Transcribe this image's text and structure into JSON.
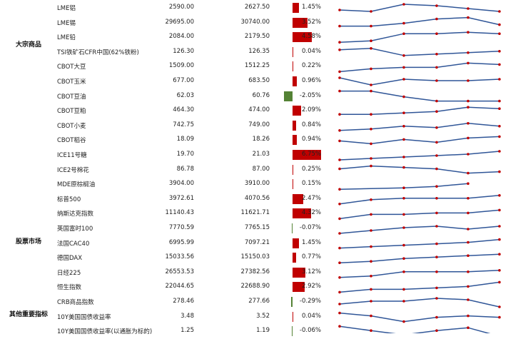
{
  "colors": {
    "up": "#c00000",
    "down": "#548235",
    "line": "#2f5597",
    "dot": "#c00000"
  },
  "categories": [
    {
      "label": "大宗商品"
    },
    {
      "label": "股票市场"
    },
    {
      "label": "其他重要指标"
    }
  ],
  "rows": [
    {
      "name": "LME铝",
      "prev": "2590.00",
      "curr": "2627.50",
      "pct": "1.45%",
      "value": 1.45,
      "spark": [
        3,
        2,
        7,
        6,
        4,
        2
      ]
    },
    {
      "name": "LME锡",
      "prev": "29695.00",
      "curr": "30740.00",
      "pct": "3.52%",
      "value": 3.52,
      "spark": [
        2,
        2,
        4,
        7,
        8,
        3
      ]
    },
    {
      "name": "LME铅",
      "prev": "2084.00",
      "curr": "2179.50",
      "pct": "4.58%",
      "value": 4.58,
      "spark": [
        1,
        2,
        7,
        7,
        8,
        7
      ]
    },
    {
      "name": "TSI铁矿石CFR中国(62%铁粉)",
      "prev": "126.30",
      "curr": "126.35",
      "pct": "0.04%",
      "value": 0.04,
      "spark": [
        6,
        7,
        2,
        3,
        4,
        5
      ]
    },
    {
      "name": "CBOT大豆",
      "prev": "1509.00",
      "curr": "1512.25",
      "pct": "0.22%",
      "value": 0.22,
      "spark": [
        1,
        3,
        4,
        4,
        7,
        6
      ]
    },
    {
      "name": "CBOT玉米",
      "prev": "677.00",
      "curr": "683.50",
      "pct": "0.96%",
      "value": 0.96,
      "spark": [
        7,
        2,
        6,
        5,
        5,
        6
      ]
    },
    {
      "name": "CBOT豆油",
      "prev": "62.03",
      "curr": "60.76",
      "pct": "-2.05%",
      "value": -2.05,
      "spark": [
        8,
        8,
        4,
        1,
        1,
        1
      ]
    },
    {
      "name": "CBOT豆粕",
      "prev": "464.30",
      "curr": "474.00",
      "pct": "2.09%",
      "value": 2.09,
      "spark": [
        2,
        2,
        3,
        4,
        7,
        6
      ]
    },
    {
      "name": "CBOT小麦",
      "prev": "742.75",
      "curr": "749.00",
      "pct": "0.84%",
      "value": 0.84,
      "spark": [
        1,
        2,
        4,
        3,
        6,
        4
      ]
    },
    {
      "name": "CBOT稻谷",
      "prev": "18.09",
      "curr": "18.26",
      "pct": "0.94%",
      "value": 0.94,
      "spark": [
        4,
        2,
        5,
        3,
        6,
        7
      ]
    },
    {
      "name": "ICE11号糖",
      "prev": "19.70",
      "curr": "21.03",
      "pct": "6.75%",
      "value": 6.75,
      "spark": [
        1,
        2,
        3,
        4,
        5,
        7
      ]
    },
    {
      "name": "ICE2号棉花",
      "prev": "86.78",
      "curr": "87.00",
      "pct": "0.25%",
      "value": 0.25,
      "spark": [
        5,
        7,
        6,
        5,
        2,
        3
      ]
    },
    {
      "name": "MDE原棕榈油",
      "prev": "3904.00",
      "curr": "3910.00",
      "pct": "0.15%",
      "value": 0.15,
      "spark": [
        1,
        null,
        2,
        3,
        5,
        null
      ]
    },
    {
      "name": "标普500",
      "prev": "3972.61",
      "curr": "4070.56",
      "pct": "2.47%",
      "value": 2.47,
      "spark": [
        1,
        4,
        5,
        5,
        5,
        7
      ]
    },
    {
      "name": "纳斯达克指数",
      "prev": "11140.43",
      "curr": "11621.71",
      "pct": "4.32%",
      "value": 4.32,
      "spark": [
        1,
        4,
        4,
        5,
        5,
        7
      ]
    },
    {
      "name": "英国富时100",
      "prev": "7770.59",
      "curr": "7765.15",
      "pct": "-0.07%",
      "value": -0.07,
      "spark": [
        1,
        3,
        5,
        6,
        4,
        6
      ]
    },
    {
      "name": "法国CAC40",
      "prev": "6995.99",
      "curr": "7097.21",
      "pct": "1.45%",
      "value": 1.45,
      "spark": [
        1,
        2,
        3,
        4,
        5,
        7
      ]
    },
    {
      "name": "德国DAX",
      "prev": "15033.56",
      "curr": "15150.03",
      "pct": "0.77%",
      "value": 0.77,
      "spark": [
        1,
        2,
        4,
        5,
        6,
        7
      ]
    },
    {
      "name": "日经225",
      "prev": "26553.53",
      "curr": "27382.56",
      "pct": "3.12%",
      "value": 3.12,
      "spark": [
        1,
        2,
        5,
        5,
        5,
        6
      ]
    },
    {
      "name": "恒生指数",
      "prev": "22044.65",
      "curr": "22688.90",
      "pct": "2.92%",
      "value": 2.92,
      "spark": [
        1,
        3,
        3,
        4,
        5,
        8
      ]
    },
    {
      "name": "CRB商品指数",
      "prev": "278.46",
      "curr": "277.66",
      "pct": "-0.29%",
      "value": -0.29,
      "spark": [
        3,
        5,
        5,
        7,
        6,
        1
      ]
    },
    {
      "name": "10Y美国国债收益率",
      "prev": "3.48",
      "curr": "3.52",
      "pct": "0.04%",
      "value": 0.04,
      "spark": [
        7,
        5,
        1,
        4,
        5,
        4
      ]
    },
    {
      "name": "10Y美国国债收益率(以通胀为标的)",
      "prev": "1.25",
      "curr": "1.19",
      "pct": "-0.06%",
      "value": -0.06,
      "spark": [
        8,
        5,
        2,
        5,
        7,
        1
      ]
    }
  ]
}
